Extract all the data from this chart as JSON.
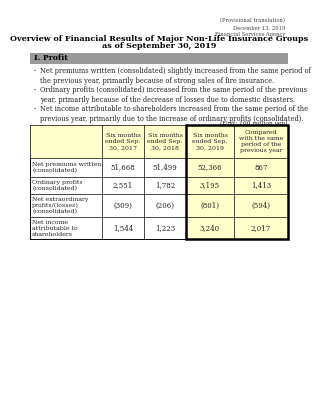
{
  "top_right_text": "(Provisional translation)\nDecember 13, 2019\nFinancial Services Agency",
  "main_title_line1": "Overview of Financial Results of Major Non-Life Insurance Groups",
  "main_title_line2": "as of September 30, 2019",
  "section_title": "I. Profit",
  "bullets": [
    [
      "- ",
      "Net premiums written (consolidated) slightly increased from the same period of the previous year, primarily because of strong sales of fire insurance."
    ],
    [
      "- ",
      "Ordinary profits (consolidated) increased from the same period of the previous year, primarily because of the decrease of losses due to domestic disasters."
    ],
    [
      "- ",
      "Net income attributable to shareholders increased from the same period of the previous year, primarily due to the increase of ordinary profits (consolidated)."
    ]
  ],
  "unit_text": "(Unit: 100 million yen)",
  "col_headers": [
    "Six months\nended Sep.\n30, 2017",
    "Six months\nended Sep.\n30, 2018",
    "Six months\nended Sep.\n30, 2019",
    "Compared\nwith the same\nperiod of the\nprevious year"
  ],
  "row_labels": [
    "Net premiums written\n(consolidated)",
    "Ordinary profits\n(consolidated)",
    "Net extraordinary\nprofits/(losses)\n(consolidated)",
    "Net income\nattributable to\nshareholders"
  ],
  "table_data": [
    [
      "51,668",
      "51,499",
      "52,366",
      "867"
    ],
    [
      "2,551",
      "1,782",
      "3,195",
      "1,413"
    ],
    [
      "(309)",
      "(206)",
      "(801)",
      "(594)"
    ],
    [
      "1,544",
      "1,223",
      "3,240",
      "2,017"
    ]
  ],
  "header_bg_color": "#FFFFCC",
  "highlight_col_bg": "#FFFFCC",
  "section_bg_color": "#999999",
  "bg_color": "#FFFFFF",
  "border_color": "#000000",
  "text_color": "#000000",
  "gray_text": "#222222"
}
